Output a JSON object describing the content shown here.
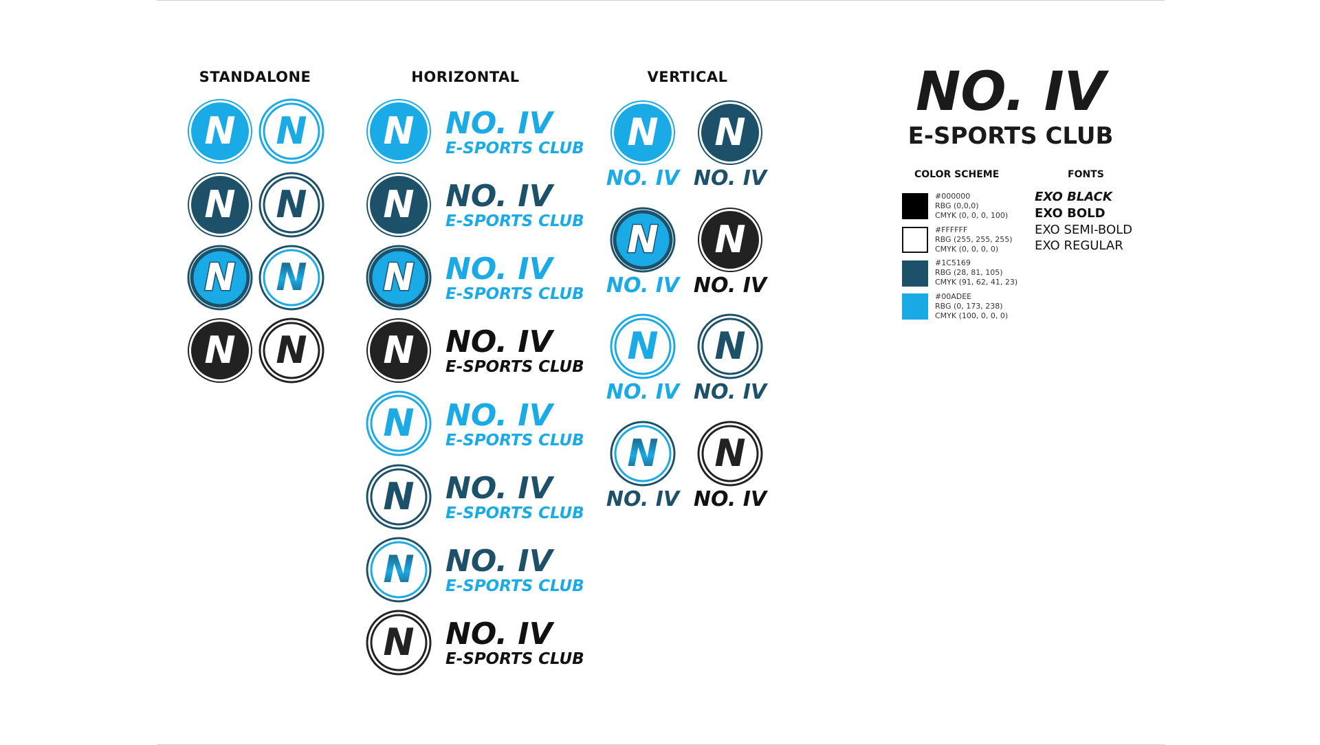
{
  "sections": {
    "standalone": "STANDALONE",
    "horizontal": "HORIZONTAL",
    "vertical": "VERTICAL"
  },
  "wordmark": {
    "line1": "NO. IV",
    "line2": "E-SPORTS CLUB"
  },
  "colors": {
    "black": "#000000",
    "white": "#FFFFFF",
    "navy": "#1C5169",
    "cyan": "#00ADEE"
  },
  "scheme": {
    "title": "COLOR SCHEME",
    "swatches": [
      {
        "hex": "#000000",
        "rgb": "RBG (0,0,0)",
        "cmyk": "CMYK (0, 0, 0, 100)"
      },
      {
        "hex": "#FFFFFF",
        "rgb": "RBG (255, 255, 255)",
        "cmyk": "CMYK (0, 0, 0, 0)"
      },
      {
        "hex": "#1C5169",
        "rgb": "RBG (28, 81, 105)",
        "cmyk": "CMYK (91, 62, 41, 23)"
      },
      {
        "hex": "#00ADEE",
        "rgb": "RBG (0, 173, 238)",
        "cmyk": "CMYK (100, 0, 0, 0)"
      }
    ]
  },
  "fonts": {
    "title": "FONTS",
    "items": [
      "EXO BLACK",
      "EXO BOLD",
      "EXO SEMI-BOLD",
      "EXO REGULAR"
    ]
  },
  "badge_letter": "N",
  "icons": [
    "n-badge-icon"
  ]
}
